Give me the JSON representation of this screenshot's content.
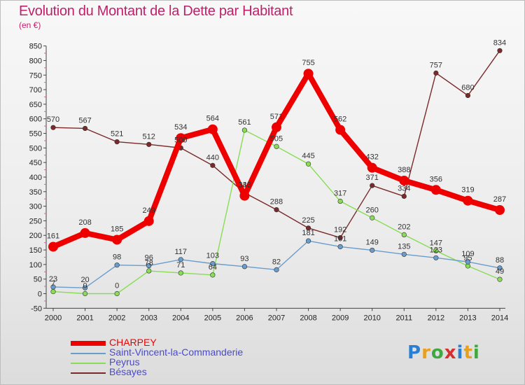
{
  "title": "Evolution du Montant de la Dette par Habitant",
  "subtitle": "(en €)",
  "logo_text": "Proxiti",
  "chart_data": {
    "type": "line",
    "title": "Evolution du Montant de la Dette par Habitant",
    "ylabel": "(en €)",
    "ylim": [
      -50,
      850
    ],
    "grid": false,
    "legend_position": "bottom-left",
    "x": [
      "2000",
      "2001",
      "2002",
      "2003",
      "2004",
      "2005",
      "2006",
      "2007",
      "2008",
      "2009",
      "2010",
      "2011",
      "2012",
      "2013",
      "2014"
    ],
    "yticks": [
      -50,
      0,
      50,
      100,
      150,
      200,
      250,
      300,
      350,
      400,
      450,
      500,
      550,
      600,
      650,
      700,
      750,
      800,
      850
    ],
    "series": [
      {
        "name": "CHARPEY",
        "color": "#ee0000",
        "values": [
          161,
          208,
          185,
          249,
          534,
          564,
          336,
          571,
          755,
          562,
          432,
          388,
          356,
          319,
          287
        ]
      },
      {
        "name": "Saint-Vincent-la-Commanderie",
        "color": "#6a9ccc",
        "values": [
          23,
          20,
          98,
          96,
          117,
          103,
          93,
          82,
          181,
          161,
          149,
          135,
          123,
          109,
          88
        ]
      },
      {
        "name": "Peyrus",
        "color": "#88dd55",
        "values": [
          7,
          0,
          0,
          78,
          71,
          64,
          561,
          505,
          445,
          317,
          260,
          202,
          147,
          95,
          49
        ]
      },
      {
        "name": "Bésayes",
        "color": "#7a2a2a",
        "values": [
          570,
          567,
          521,
          512,
          500,
          440,
          346,
          288,
          225,
          192,
          371,
          334,
          757,
          680,
          834
        ]
      }
    ]
  }
}
